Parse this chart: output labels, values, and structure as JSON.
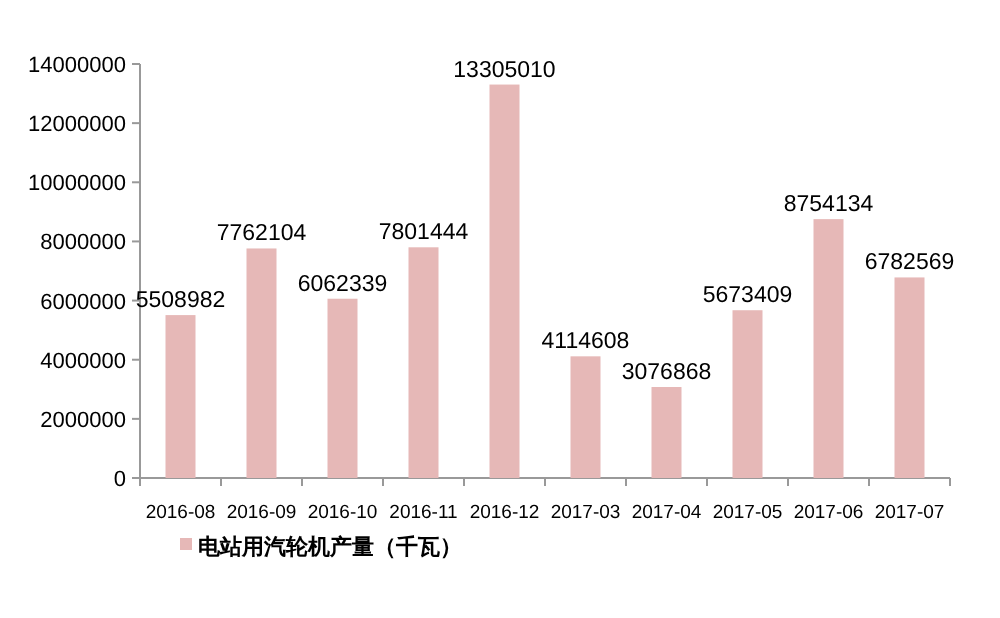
{
  "chart_data": {
    "type": "bar",
    "categories": [
      "2016-08",
      "2016-09",
      "2016-10",
      "2016-11",
      "2016-12",
      "2017-03",
      "2017-04",
      "2017-05",
      "2017-06",
      "2017-07"
    ],
    "series": [
      {
        "name": "电站用汽轮机产量（千瓦）",
        "color": "#e6b8b7",
        "values": [
          5508982,
          7762104,
          6062339,
          7801444,
          13305010,
          4114608,
          3076868,
          5673409,
          8754134,
          6782569
        ]
      }
    ],
    "ylim": [
      0,
      14000000
    ],
    "yticks": [
      0,
      2000000,
      4000000,
      6000000,
      8000000,
      10000000,
      12000000,
      14000000
    ],
    "data_labels": true,
    "grid": false,
    "legend": "bottom left"
  }
}
